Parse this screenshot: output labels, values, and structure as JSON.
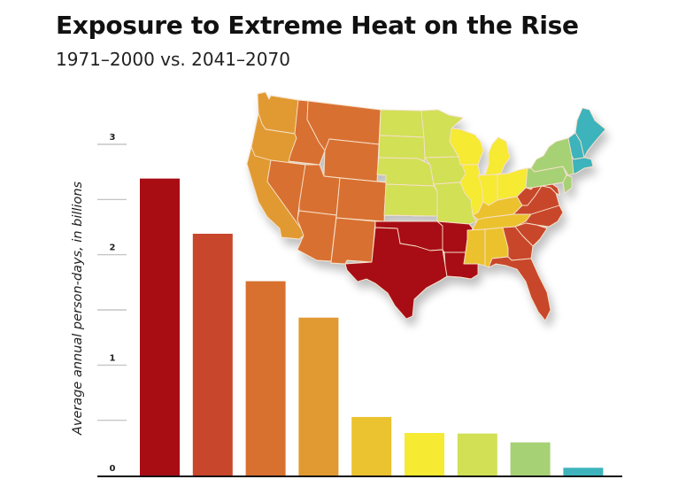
{
  "chart_data": {
    "type": "bar",
    "title": "Exposure to Extreme Heat on the Rise",
    "subtitle": "1971–2000 vs. 2041–2070",
    "xlabel": "",
    "ylabel": "Average annual person-days, in billions",
    "ylim": [
      0,
      3
    ],
    "yticks": [
      0,
      0.5,
      1,
      1.5,
      2,
      2.5,
      3
    ],
    "ytick_labels": [
      "0",
      "",
      "1",
      "",
      "2",
      "",
      "3"
    ],
    "grid": false,
    "categories": [
      "",
      "",
      "",
      "",
      "",
      "",
      "",
      "",
      ""
    ],
    "values": [
      2.69,
      2.19,
      1.76,
      1.43,
      0.53,
      0.385,
      0.38,
      0.3,
      0.07
    ],
    "colors": [
      "#A80D14",
      "#C8462C",
      "#D87030",
      "#E19A32",
      "#EBC22F",
      "#F6EA33",
      "#D1E055",
      "#A6D175",
      "#3EB3BC"
    ],
    "map_legend": {
      "type": "choropleth",
      "description": "US regions colored to match bars",
      "regions": [
        {
          "region": "south-central",
          "color": "#A80D14"
        },
        {
          "region": "southeast",
          "color": "#C8462C"
        },
        {
          "region": "mountain",
          "color": "#D87030"
        },
        {
          "region": "pacific",
          "color": "#E19A32"
        },
        {
          "region": "east-south-central",
          "color": "#EBC22F"
        },
        {
          "region": "midwest",
          "color": "#F6EA33"
        },
        {
          "region": "plains",
          "color": "#D1E055"
        },
        {
          "region": "mid-atlantic",
          "color": "#A6D175"
        },
        {
          "region": "new-england",
          "color": "#3EB3BC"
        }
      ]
    }
  }
}
